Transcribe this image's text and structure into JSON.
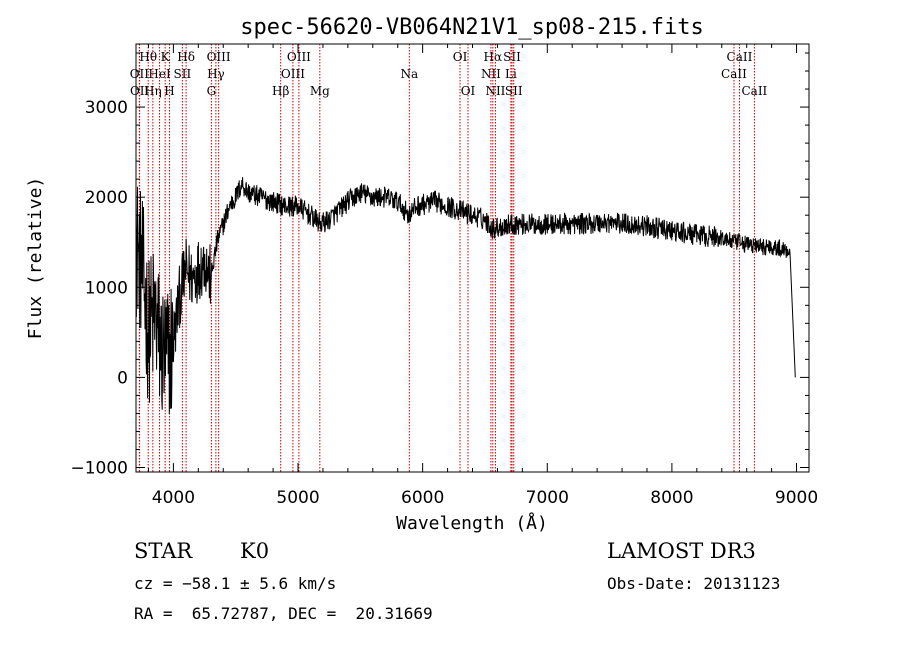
{
  "chart_data": {
    "type": "line",
    "title": "spec-56620-VB064N21V1_sp08-215.fits",
    "xlabel": "Wavelength (Å)",
    "ylabel": "Flux (relative)",
    "xlim": [
      3700,
      9100
    ],
    "ylim": [
      -1050,
      3700
    ],
    "xticks": [
      4000,
      5000,
      6000,
      7000,
      8000,
      9000
    ],
    "yticks": [
      -1000,
      0,
      1000,
      2000,
      3000
    ],
    "ytick_labels": [
      "−1000",
      "0",
      "1000",
      "2000",
      "3000"
    ],
    "line_color": "#000000",
    "marker_color": "#cc0000",
    "spectrum": {
      "name": "flux",
      "anchors": [
        [
          3700,
          1500
        ],
        [
          3750,
          1200
        ],
        [
          3800,
          500
        ],
        [
          3850,
          700
        ],
        [
          3900,
          300
        ],
        [
          3950,
          200
        ],
        [
          4000,
          400
        ],
        [
          4050,
          900
        ],
        [
          4100,
          1200
        ],
        [
          4150,
          1100
        ],
        [
          4200,
          1200
        ],
        [
          4250,
          1300
        ],
        [
          4300,
          1100
        ],
        [
          4350,
          1500
        ],
        [
          4400,
          1700
        ],
        [
          4450,
          1900
        ],
        [
          4500,
          2000
        ],
        [
          4550,
          2150
        ],
        [
          4600,
          2050
        ],
        [
          4700,
          2000
        ],
        [
          4800,
          1950
        ],
        [
          4900,
          1900
        ],
        [
          5000,
          1900
        ],
        [
          5100,
          1800
        ],
        [
          5180,
          1700
        ],
        [
          5250,
          1750
        ],
        [
          5400,
          1950
        ],
        [
          5500,
          2050
        ],
        [
          5600,
          2000
        ],
        [
          5700,
          2000
        ],
        [
          5800,
          1950
        ],
        [
          5890,
          1800
        ],
        [
          5950,
          1900
        ],
        [
          6100,
          1950
        ],
        [
          6300,
          1850
        ],
        [
          6500,
          1750
        ],
        [
          6563,
          1650
        ],
        [
          6700,
          1700
        ],
        [
          7000,
          1700
        ],
        [
          7200,
          1700
        ],
        [
          7500,
          1720
        ],
        [
          7800,
          1680
        ],
        [
          8000,
          1620
        ],
        [
          8200,
          1580
        ],
        [
          8400,
          1550
        ],
        [
          8500,
          1500
        ],
        [
          8600,
          1480
        ],
        [
          8700,
          1450
        ],
        [
          8800,
          1450
        ],
        [
          8900,
          1420
        ],
        [
          8950,
          1400
        ]
      ],
      "noise_amplitude": 120,
      "tail_drop": [
        8990,
        0
      ]
    },
    "line_markers": [
      {
        "label": "Hθ",
        "x": 3798,
        "row": 0
      },
      {
        "label": "OII",
        "x": 3727,
        "row": 1
      },
      {
        "label": "OII",
        "x": 3729,
        "row": 2
      },
      {
        "label": "Hη",
        "x": 3835,
        "row": 2
      },
      {
        "label": "K",
        "x": 3934,
        "row": 0
      },
      {
        "label": "HeI",
        "x": 3889,
        "row": 1
      },
      {
        "label": "H",
        "x": 3969,
        "row": 2
      },
      {
        "label": "Hδ",
        "x": 4102,
        "row": 0
      },
      {
        "label": "SII",
        "x": 4072,
        "row": 1
      },
      {
        "label": "OIII",
        "x": 4363,
        "row": 0
      },
      {
        "label": "Hγ",
        "x": 4341,
        "row": 1
      },
      {
        "label": "G",
        "x": 4305,
        "row": 2
      },
      {
        "label": "Hβ",
        "x": 4861,
        "row": 2
      },
      {
        "label": "OIII",
        "x": 5007,
        "row": 0
      },
      {
        "label": "OIII",
        "x": 4959,
        "row": 1
      },
      {
        "label": "Mg",
        "x": 5175,
        "row": 2
      },
      {
        "label": "Na",
        "x": 5893,
        "row": 1
      },
      {
        "label": "OI",
        "x": 6300,
        "row": 0
      },
      {
        "label": "OI",
        "x": 6364,
        "row": 2
      },
      {
        "label": "Hα",
        "x": 6563,
        "row": 0
      },
      {
        "label": "NII",
        "x": 6548,
        "row": 1
      },
      {
        "label": "NII",
        "x": 6584,
        "row": 2
      },
      {
        "label": "SII",
        "x": 6717,
        "row": 0
      },
      {
        "label": "Li",
        "x": 6708,
        "row": 1
      },
      {
        "label": "SII",
        "x": 6731,
        "row": 2
      },
      {
        "label": "CaII",
        "x": 8542,
        "row": 0
      },
      {
        "label": "CaII",
        "x": 8498,
        "row": 1
      },
      {
        "label": "CaII",
        "x": 8662,
        "row": 2
      }
    ]
  },
  "info": {
    "object_class": "STAR",
    "subclass": "K0",
    "redshift": "cz = −58.1 ± 5.6 km/s",
    "coords": "RA =  65.72787, DEC =  20.31669",
    "survey": "LAMOST DR3",
    "obs_date": "Obs-Date: 20131123"
  }
}
